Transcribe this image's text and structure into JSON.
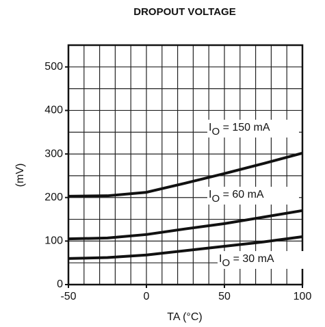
{
  "chart_data": {
    "type": "line",
    "title": "DROPOUT VOLTAGE",
    "x_label": "TA (°C)",
    "y_label": "(mV)",
    "xlim": [
      -50,
      100
    ],
    "xticks": [
      -50,
      0,
      50,
      100
    ],
    "ylim": [
      0,
      550
    ],
    "yticks": [
      0,
      100,
      200,
      300,
      400,
      500
    ],
    "xgrid": [
      -50,
      -40,
      -30,
      -20,
      -10,
      0,
      10,
      20,
      30,
      40,
      50,
      60,
      70,
      80,
      90,
      100
    ],
    "ygrid": [
      0,
      50,
      100,
      150,
      200,
      250,
      300,
      350,
      400,
      450,
      500,
      550
    ],
    "grid": true,
    "x": [
      -50,
      -25,
      0,
      25,
      50,
      75,
      100
    ],
    "series": [
      {
        "label": {
          "main": "I",
          "sub": "O",
          "rest": " = 150 mA"
        },
        "color": "#111",
        "values": [
          203,
          204,
          212,
          233,
          255,
          278,
          302
        ]
      },
      {
        "label": {
          "main": "I",
          "sub": "O",
          "rest": " = 60 mA"
        },
        "color": "#111",
        "values": [
          105,
          107,
          115,
          128,
          140,
          155,
          170
        ]
      },
      {
        "label": {
          "main": "I",
          "sub": "O",
          "rest": " = 30 mA"
        },
        "color": "#111",
        "values": [
          60,
          62,
          68,
          78,
          88,
          98,
          110
        ]
      }
    ]
  }
}
